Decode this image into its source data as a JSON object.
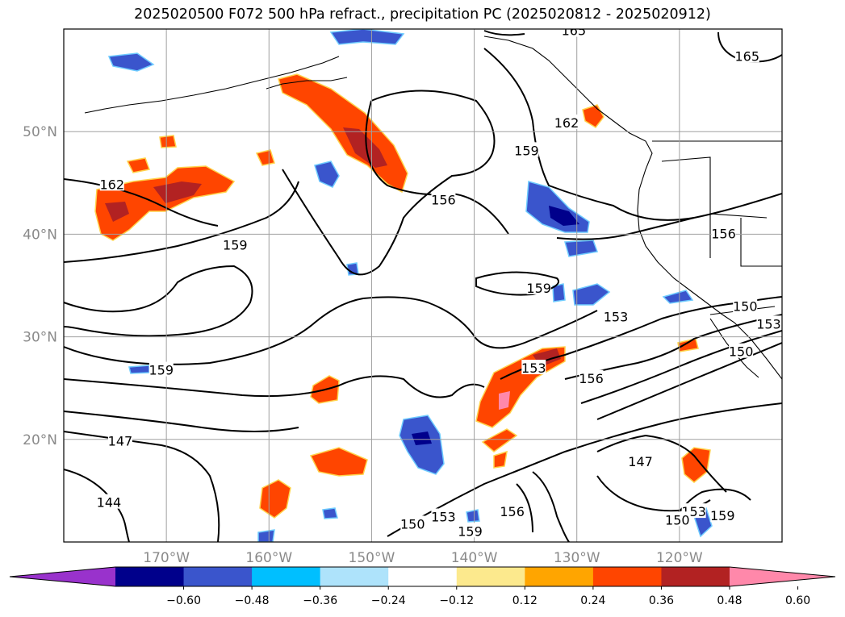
{
  "title": "2025020500 F072 500 hPa refract., precipitation PC (2025020812 - 2025020912)",
  "chart_data": {
    "type": "heatmap",
    "map_extent": {
      "lon": [
        -180,
        -110
      ],
      "lat": [
        10,
        60
      ]
    },
    "grid": true,
    "lat_ticks": [
      {
        "value": 50,
        "label": "50°N"
      },
      {
        "value": 40,
        "label": "40°N"
      },
      {
        "value": 30,
        "label": "30°N"
      },
      {
        "value": 20,
        "label": "20°N"
      }
    ],
    "lon_ticks": [
      {
        "value": -170,
        "label": "170°W"
      },
      {
        "value": -160,
        "label": "160°W"
      },
      {
        "value": -150,
        "label": "150°W"
      },
      {
        "value": -140,
        "label": "140°W"
      },
      {
        "value": -130,
        "label": "130°W"
      },
      {
        "value": -120,
        "label": "120°W"
      }
    ],
    "colorbar": {
      "extend": "both",
      "colors": [
        "#9932cc",
        "#00008b",
        "#3a55cc",
        "#00bfff",
        "#aee3fb",
        "#ffffff",
        "#fce98d",
        "#ffa500",
        "#ff4500",
        "#b22222",
        "#ff88aa"
      ],
      "tick_labels": [
        "−0.60",
        "−0.48",
        "−0.36",
        "−0.24",
        "−0.12",
        "0.12",
        "0.24",
        "0.36",
        "0.48",
        "0.60"
      ]
    },
    "contour_labels": [
      {
        "text": "165",
        "lon": -130.3,
        "lat": 59.8
      },
      {
        "text": "165",
        "lon": -113.4,
        "lat": 57.3
      },
      {
        "text": "162",
        "lon": -131.0,
        "lat": 50.8
      },
      {
        "text": "159",
        "lon": -134.9,
        "lat": 48.1
      },
      {
        "text": "162",
        "lon": -175.3,
        "lat": 44.8
      },
      {
        "text": "159",
        "lon": -163.3,
        "lat": 38.9
      },
      {
        "text": "156",
        "lon": -143.0,
        "lat": 43.3
      },
      {
        "text": "156",
        "lon": -115.7,
        "lat": 40.0
      },
      {
        "text": "159",
        "lon": -133.7,
        "lat": 34.7
      },
      {
        "text": "153",
        "lon": -126.2,
        "lat": 31.9
      },
      {
        "text": "150",
        "lon": -113.6,
        "lat": 32.9
      },
      {
        "text": "153",
        "lon": -111.3,
        "lat": 31.2
      },
      {
        "text": "150",
        "lon": -114.0,
        "lat": 28.5
      },
      {
        "text": "153",
        "lon": -134.2,
        "lat": 26.9
      },
      {
        "text": "156",
        "lon": -128.6,
        "lat": 25.9
      },
      {
        "text": "159",
        "lon": -170.5,
        "lat": 26.7
      },
      {
        "text": "147",
        "lon": -174.5,
        "lat": 19.8
      },
      {
        "text": "147",
        "lon": -123.8,
        "lat": 17.8
      },
      {
        "text": "144",
        "lon": -175.6,
        "lat": 13.8
      },
      {
        "text": "150",
        "lon": -146.0,
        "lat": 11.7
      },
      {
        "text": "153",
        "lon": -143.0,
        "lat": 12.4
      },
      {
        "text": "156",
        "lon": -136.3,
        "lat": 12.9
      },
      {
        "text": "159",
        "lon": -140.4,
        "lat": 11.0
      },
      {
        "text": "153",
        "lon": -118.6,
        "lat": 12.9
      },
      {
        "text": "159",
        "lon": -115.8,
        "lat": 12.5
      },
      {
        "text": "150",
        "lon": -120.2,
        "lat": 12.1
      }
    ]
  }
}
